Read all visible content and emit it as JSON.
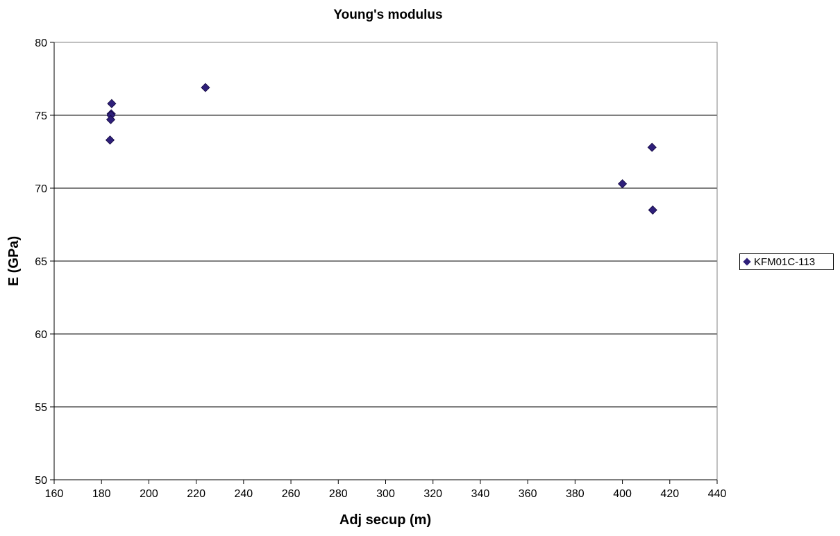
{
  "chart_data": {
    "type": "scatter",
    "title": "Young's modulus",
    "xlabel": "Adj secup (m)",
    "ylabel": "E (GPa)",
    "xlim": [
      160,
      440
    ],
    "ylim": [
      50,
      80
    ],
    "x_ticks": [
      160,
      180,
      200,
      220,
      240,
      260,
      280,
      300,
      320,
      340,
      360,
      380,
      400,
      420,
      440
    ],
    "y_ticks": [
      50,
      55,
      60,
      65,
      70,
      75,
      80
    ],
    "grid": "horizontal major gridlines",
    "legend_position": "right",
    "series": [
      {
        "name": "KFM01C-113",
        "color": "#2e1f7a",
        "marker": "diamond",
        "points": [
          {
            "x": 184.3,
            "y": 75.8
          },
          {
            "x": 184.1,
            "y": 75.1
          },
          {
            "x": 184.0,
            "y": 75.0
          },
          {
            "x": 183.9,
            "y": 74.7
          },
          {
            "x": 183.6,
            "y": 73.3
          },
          {
            "x": 223.9,
            "y": 76.9
          },
          {
            "x": 400.0,
            "y": 70.3
          },
          {
            "x": 412.5,
            "y": 72.8
          },
          {
            "x": 412.8,
            "y": 68.5
          }
        ]
      }
    ]
  }
}
